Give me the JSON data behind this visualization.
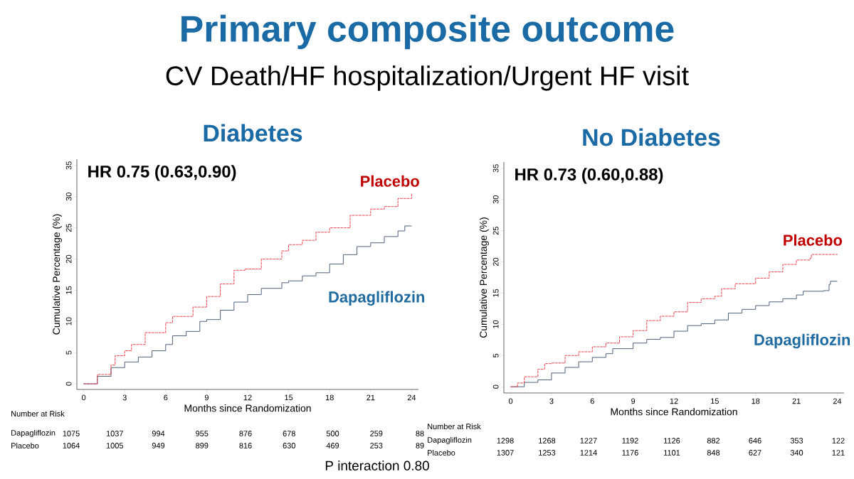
{
  "chart_data": [
    {
      "type": "other",
      "title": "Primary composite outcome",
      "subtitle": "CV Death/HF hospitalization/Urgent HF visit",
      "annotations": [
        "P interaction 0.80"
      ]
    },
    {
      "type": "step",
      "title": "Diabetes",
      "xlabel": "Months since Randomization",
      "ylabel": "Cumulative Percentage (%)",
      "xlim": [
        -0.5,
        24.5
      ],
      "ylim": [
        -0.9,
        36
      ],
      "xticks": [
        0,
        3,
        6,
        9,
        12,
        15,
        18,
        21,
        24
      ],
      "yticks": [
        0,
        5,
        10,
        15,
        20,
        25,
        30,
        35
      ],
      "series": [
        {
          "name": "Placebo",
          "color": "#e8303a",
          "line_style": "dashed",
          "x": [
            0,
            1,
            2,
            2.3,
            3,
            3.5,
            4.5,
            6,
            6.5,
            8,
            9,
            10,
            11,
            11.8,
            13,
            14.5,
            15,
            16,
            17,
            18,
            19.5,
            21,
            22,
            23,
            23.9,
            24
          ],
          "values": [
            0,
            1.5,
            3,
            4.5,
            5.3,
            6.3,
            8.2,
            9.8,
            10.8,
            12.3,
            14,
            16,
            18.2,
            18.4,
            20,
            21.3,
            22.3,
            23,
            24.3,
            25,
            27,
            28,
            28.4,
            29.7,
            29.7,
            30.4
          ]
        },
        {
          "name": "Dapagliflozin",
          "color": "#3d4f6e",
          "line_style": "solid",
          "x": [
            0,
            1,
            2,
            3,
            4,
            5,
            6,
            6.5,
            7.5,
            8.5,
            9,
            10,
            11,
            12,
            13,
            14.5,
            15,
            16,
            17,
            18,
            19,
            20,
            21,
            22,
            23,
            23.5,
            24
          ],
          "values": [
            0,
            1.2,
            2.6,
            3.5,
            4.3,
            5.3,
            6.3,
            7.7,
            8.4,
            10,
            10.3,
            11.8,
            13.1,
            14.3,
            15.3,
            16.2,
            16.5,
            17.3,
            17.8,
            19.2,
            20.7,
            22,
            22.6,
            23.6,
            24.5,
            25.3,
            25.3
          ]
        }
      ],
      "annotations": [
        "HR 0.75 (0.63,0.90)",
        "Number at Risk",
        "Dapagliflozin",
        "1075",
        "1037",
        "994",
        "955",
        "876",
        "678",
        "500",
        "259",
        "88",
        "Placebo",
        "1064",
        "1005",
        "949",
        "899",
        "816",
        "630",
        "469",
        "253",
        "89"
      ]
    },
    {
      "type": "step",
      "title": "No Diabetes",
      "xlabel": "Months since Randomization",
      "ylabel": "Cumulative Percentage (%)",
      "xlim": [
        -0.5,
        24.5
      ],
      "ylim": [
        -1,
        36
      ],
      "xticks": [
        0,
        3,
        6,
        9,
        12,
        15,
        18,
        21,
        24
      ],
      "yticks": [
        0,
        5,
        10,
        15,
        20,
        25,
        30,
        35
      ],
      "series": [
        {
          "name": "Placebo",
          "color": "#e8303a",
          "line_style": "dashed",
          "x": [
            0,
            0.5,
            1,
            2,
            2.5,
            3,
            4,
            5,
            6,
            7,
            8,
            9,
            10,
            11,
            12,
            13,
            14,
            15,
            15.5,
            16.5,
            18,
            19,
            20,
            21,
            22,
            22.1,
            24
          ],
          "values": [
            0,
            0.6,
            1.6,
            2.8,
            3.7,
            3.8,
            5,
            5.6,
            6.4,
            7,
            8,
            9,
            10.6,
            11.3,
            12,
            13.5,
            14.1,
            14.5,
            15.7,
            16.5,
            17.4,
            18.4,
            19.6,
            20.3,
            20.6,
            21.2,
            21.2
          ]
        },
        {
          "name": "Dapagliflozin",
          "color": "#3d4f6e",
          "line_style": "solid",
          "x": [
            0,
            1,
            2,
            3,
            4,
            5,
            6,
            7,
            7.5,
            9,
            10,
            11,
            12,
            13,
            14,
            15,
            16,
            17,
            18,
            19,
            20,
            21,
            21.5,
            23,
            23.4,
            23.5,
            24
          ],
          "values": [
            0,
            0.7,
            1.1,
            2.2,
            3.1,
            4,
            4.7,
            5.3,
            6.1,
            7,
            7.6,
            7.9,
            8.9,
            9.8,
            10.1,
            10.7,
            11.8,
            12.4,
            13,
            13.6,
            14.1,
            14.7,
            15.3,
            15.4,
            16.4,
            16.9,
            16.9
          ]
        }
      ],
      "annotations": [
        "HR 0.73 (0.60,0.88)",
        "Number at Risk",
        "Dapagliflozin",
        "1298",
        "1268",
        "1227",
        "1192",
        "1126",
        "882",
        "646",
        "353",
        "122",
        "Placebo",
        "1307",
        "1253",
        "1214",
        "1176",
        "1101",
        "848",
        "627",
        "340",
        "121"
      ]
    }
  ]
}
